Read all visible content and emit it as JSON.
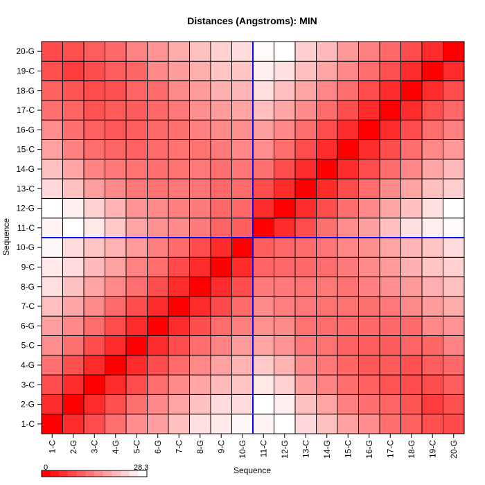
{
  "chart_data": {
    "type": "heatmap",
    "title": "Distances (Angstroms):  MIN",
    "xlabel": "Sequence",
    "ylabel": "Sequence",
    "x_categories": [
      "1-C",
      "2-G",
      "3-C",
      "4-G",
      "5-C",
      "6-G",
      "7-C",
      "8-G",
      "9-C",
      "10-G",
      "11-C",
      "12-G",
      "13-C",
      "14-G",
      "15-C",
      "16-G",
      "17-C",
      "18-G",
      "19-C",
      "20-G"
    ],
    "y_categories": [
      "1-C",
      "2-G",
      "3-C",
      "4-G",
      "5-C",
      "6-G",
      "7-C",
      "8-G",
      "9-C",
      "10-G",
      "11-C",
      "12-G",
      "13-C",
      "14-G",
      "15-C",
      "16-G",
      "17-C",
      "18-G",
      "19-C",
      "20-G"
    ],
    "value_range": [
      0,
      28.3
    ],
    "colors": {
      "low": "#ff0000",
      "high": "#ffffff",
      "divider": "#0000ff",
      "cell_border": "#000000"
    },
    "divider_after_index": 10,
    "legend": {
      "min_label": "0",
      "max_label": "28.3",
      "position": "bottom-left",
      "steps": 12
    },
    "values": [
      [
        0.0,
        4.9,
        8.5,
        12.4,
        15.7,
        17.7,
        21.2,
        24.9,
        25.9,
        27.5,
        27.0,
        28.3,
        24.1,
        21.3,
        17.9,
        15.6,
        12.3,
        10.6,
        8.8,
        8.3
      ],
      [
        4.9,
        0.0,
        4.9,
        8.8,
        12.4,
        15.2,
        18.3,
        21.5,
        24.2,
        24.4,
        28.3,
        26.4,
        21.3,
        18.1,
        14.2,
        12.3,
        11.2,
        9.4,
        6.7,
        8.9
      ],
      [
        8.5,
        4.9,
        0.0,
        4.9,
        8.6,
        12.1,
        15.5,
        18.2,
        20.7,
        21.8,
        25.7,
        23.3,
        17.5,
        14.5,
        12.2,
        10.8,
        9.2,
        8.6,
        8.7,
        10.4
      ],
      [
        12.4,
        8.8,
        4.9,
        0.0,
        4.8,
        8.6,
        11.9,
        15.2,
        18.0,
        19.8,
        22.3,
        19.9,
        15.3,
        13.2,
        11.3,
        9.8,
        10.1,
        9.0,
        10.4,
        11.6
      ],
      [
        15.7,
        12.4,
        8.6,
        4.8,
        0.0,
        4.8,
        8.5,
        12.2,
        14.5,
        17.1,
        18.1,
        16.2,
        13.2,
        12.6,
        10.9,
        10.4,
        10.3,
        11.1,
        11.4,
        14.5
      ],
      [
        17.7,
        15.2,
        12.1,
        8.6,
        4.8,
        0.0,
        4.9,
        8.7,
        12.1,
        14.0,
        16.1,
        15.3,
        12.8,
        12.2,
        11.9,
        11.6,
        11.7,
        11.9,
        15.1,
        16.3
      ],
      [
        21.2,
        18.3,
        15.5,
        11.9,
        8.5,
        4.9,
        0.0,
        4.9,
        8.3,
        11.8,
        15.4,
        14.1,
        13.2,
        12.6,
        12.6,
        12.4,
        13.2,
        15.3,
        17.4,
        19.1
      ],
      [
        24.9,
        21.5,
        18.2,
        15.2,
        12.2,
        8.7,
        4.9,
        0.0,
        4.9,
        8.5,
        13.7,
        13.6,
        13.0,
        13.3,
        12.7,
        14.3,
        15.8,
        17.1,
        19.3,
        21.3
      ],
      [
        25.9,
        24.2,
        20.7,
        18.0,
        14.5,
        12.1,
        8.3,
        4.9,
        0.0,
        4.8,
        11.0,
        11.7,
        11.6,
        12.2,
        13.6,
        15.4,
        17.2,
        19.5,
        21.8,
        23.2
      ],
      [
        27.5,
        24.4,
        21.8,
        19.8,
        17.1,
        14.0,
        11.8,
        8.5,
        4.8,
        0.0,
        10.5,
        11.6,
        12.0,
        13.0,
        15.0,
        15.8,
        18.1,
        20.1,
        21.6,
        24.3
      ],
      [
        27.0,
        28.3,
        25.7,
        22.3,
        18.1,
        16.1,
        15.4,
        13.7,
        11.0,
        10.5,
        0.0,
        4.9,
        8.6,
        12.4,
        15.7,
        17.8,
        21.2,
        24.7,
        26.4,
        27.8
      ],
      [
        28.3,
        26.4,
        23.3,
        19.9,
        16.2,
        15.3,
        14.1,
        13.6,
        11.7,
        11.6,
        4.9,
        0.0,
        4.9,
        8.6,
        12.2,
        15.1,
        18.5,
        21.2,
        24.9,
        28.3
      ],
      [
        24.1,
        21.3,
        17.5,
        15.3,
        13.2,
        12.8,
        13.2,
        13.0,
        11.6,
        12.0,
        8.6,
        4.9,
        0.0,
        4.9,
        8.5,
        12.1,
        15.4,
        18.1,
        21.2,
        23.0
      ],
      [
        21.3,
        18.1,
        14.5,
        13.2,
        12.6,
        12.2,
        12.6,
        13.3,
        12.2,
        13.0,
        12.4,
        8.6,
        4.9,
        0.0,
        4.9,
        8.4,
        12.0,
        14.9,
        18.3,
        20.7
      ],
      [
        17.9,
        14.2,
        12.2,
        11.3,
        10.9,
        11.9,
        12.6,
        12.7,
        13.6,
        15.0,
        15.7,
        12.2,
        8.5,
        4.9,
        0.0,
        4.9,
        8.7,
        12.3,
        15.1,
        17.0
      ],
      [
        15.6,
        12.3,
        10.8,
        9.8,
        10.4,
        11.6,
        12.4,
        14.3,
        15.4,
        15.8,
        17.8,
        15.1,
        12.1,
        8.4,
        4.9,
        0.0,
        4.9,
        8.6,
        12.2,
        14.2
      ],
      [
        12.3,
        11.2,
        9.2,
        10.1,
        10.3,
        11.7,
        13.2,
        15.8,
        17.2,
        18.1,
        21.2,
        18.5,
        15.4,
        12.0,
        8.7,
        4.9,
        0.0,
        4.9,
        8.8,
        11.7
      ],
      [
        10.6,
        9.4,
        8.6,
        9.0,
        11.1,
        11.9,
        15.3,
        17.1,
        19.5,
        20.1,
        24.7,
        21.2,
        18.1,
        14.9,
        12.3,
        8.6,
        4.9,
        0.0,
        4.9,
        8.5
      ],
      [
        8.8,
        6.7,
        8.7,
        10.4,
        11.4,
        15.1,
        17.4,
        19.3,
        21.8,
        21.6,
        26.4,
        24.9,
        21.2,
        18.3,
        15.1,
        12.2,
        8.8,
        4.9,
        0.0,
        4.9
      ],
      [
        8.3,
        8.9,
        10.4,
        11.6,
        14.5,
        16.3,
        19.1,
        21.3,
        23.2,
        24.3,
        27.8,
        28.3,
        23.0,
        20.7,
        17.0,
        14.2,
        11.7,
        8.5,
        4.9,
        0.0
      ]
    ]
  }
}
